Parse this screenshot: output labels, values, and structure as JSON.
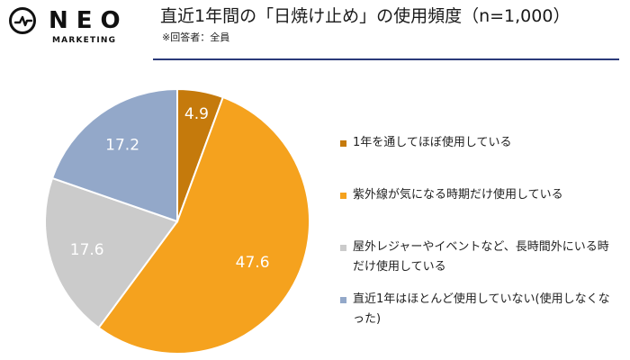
{
  "logo": {
    "main": "NEO",
    "sub": "MARKETING"
  },
  "header": {
    "title": "直近1年間の「日焼け止め」の使用頻度（n=1,000）",
    "subtitle": "※回答者：全員"
  },
  "colors": {
    "always": "#c57a0c",
    "uv_season": "#f5a21e",
    "outdoor": "#cbcbcb",
    "not_used": "#93a8c9",
    "rule": "#2b3a7a"
  },
  "chart_data": {
    "type": "pie",
    "title": "直近1年間の「日焼け止め」の使用頻度（n=1,000）",
    "unit": "%",
    "start_angle": "12 o'clock, clockwise",
    "categories": [
      "1年を通してほぼ使用している",
      "紫外線が気になる時期だけ使用している",
      "屋外レジャーやイベントなど、長時間外にいる時だけ使用している",
      "直近1年はほとんど使用していない(使用しなくなった)"
    ],
    "values": [
      4.9,
      47.6,
      17.6,
      17.2
    ],
    "labels": [
      "4.9",
      "47.6",
      "17.6",
      "17.2"
    ],
    "legend": {
      "placement": "right",
      "items": [
        {
          "label": "1年を通してほぼ使用している",
          "color": "#c57a0c"
        },
        {
          "label": "紫外線が気になる時期だけ使用している",
          "color": "#f5a21e"
        },
        {
          "label": "屋外レジャーやイベントなど、長時間外にいる時だけ使用している",
          "color": "#cbcbcb"
        },
        {
          "label": "直近1年はほとんど使用していない(使用しなくなった)",
          "color": "#93a8c9"
        }
      ]
    }
  }
}
